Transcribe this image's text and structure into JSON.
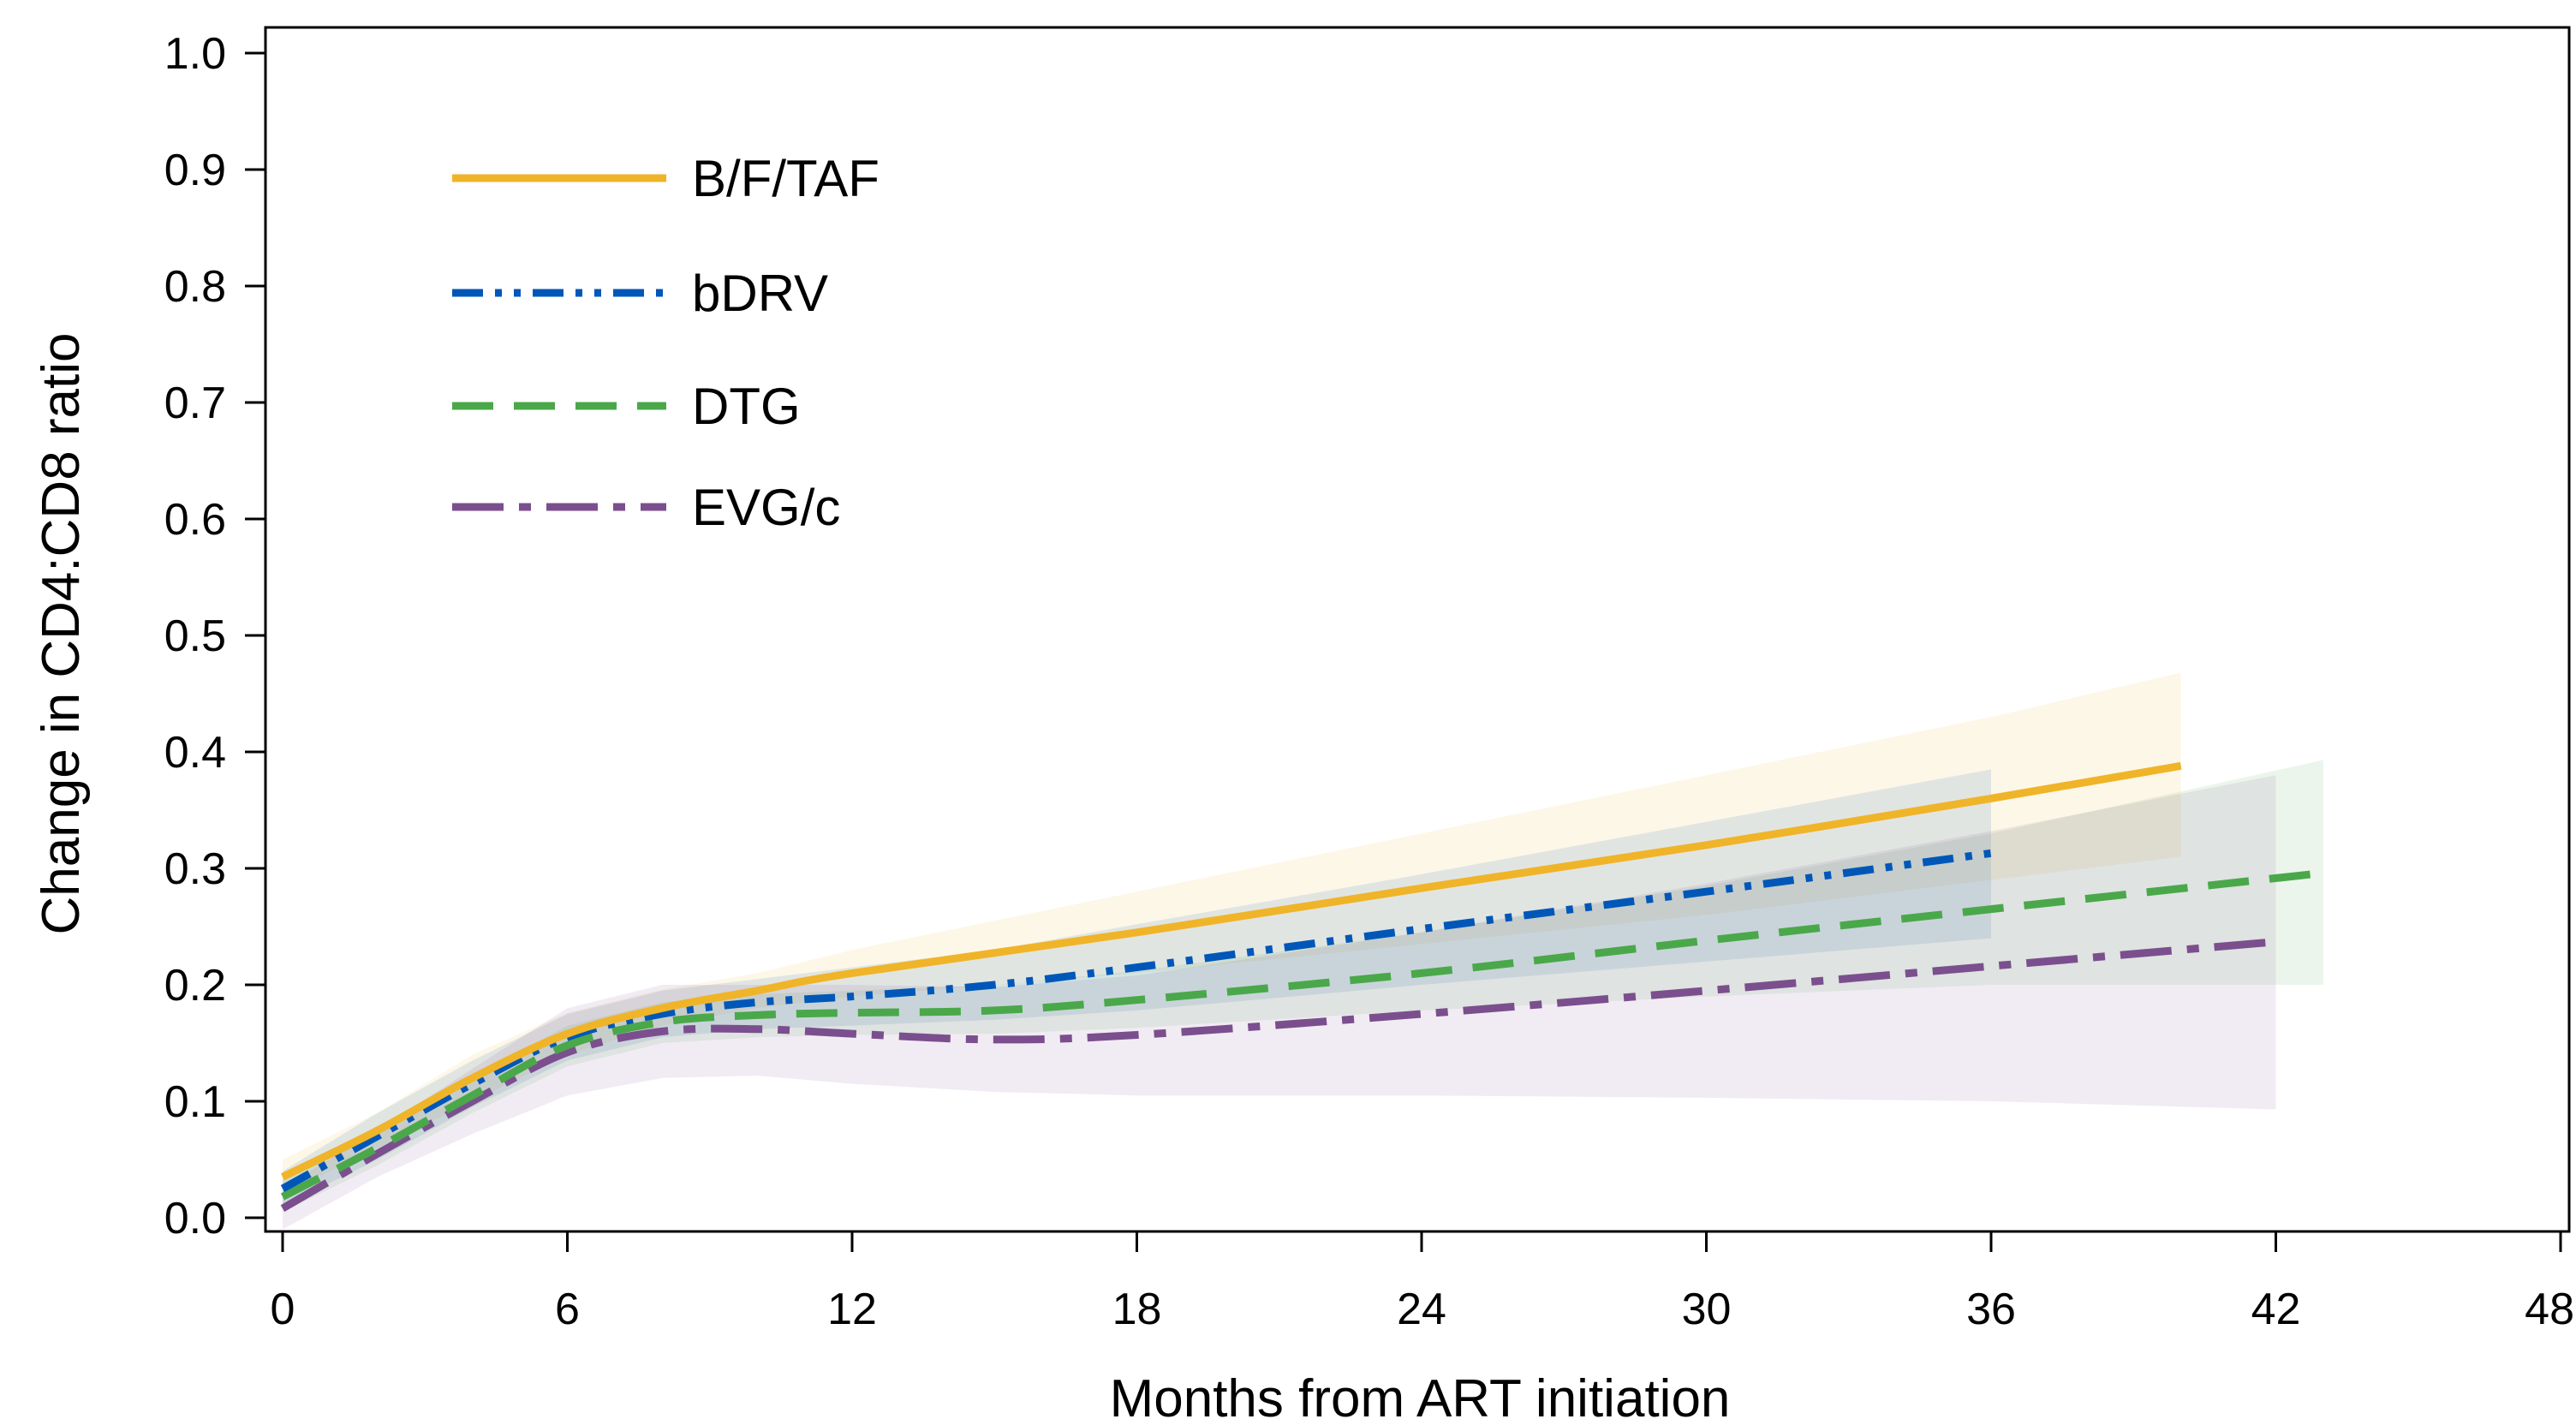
{
  "chart_data": {
    "type": "line",
    "xlabel": "Months from ART initiation",
    "ylabel": "Change in CD4:CD8 ratio",
    "xlim": [
      0,
      48
    ],
    "ylim": [
      0,
      1
    ],
    "x_ticks": [
      0,
      6,
      12,
      18,
      24,
      30,
      36,
      42,
      48
    ],
    "x_tick_labels": [
      "0",
      "6",
      "12",
      "18",
      "24",
      "30",
      "36",
      "42",
      "48"
    ],
    "y_ticks": [
      0,
      0.1,
      0.2,
      0.3,
      0.4,
      0.5,
      0.6,
      0.7,
      0.8,
      0.9,
      1.0
    ],
    "y_tick_labels": [
      "0.0",
      "0.1",
      "0.2",
      "0.3",
      "0.4",
      "0.5",
      "0.6",
      "0.7",
      "0.8",
      "0.9",
      "1.0"
    ],
    "grid": false,
    "legend_position": "top-left",
    "confidence_bands": true,
    "series": [
      {
        "name": "B/F/TAF",
        "color": "#f0b429",
        "line_style": "solid",
        "x": [
          0,
          2,
          4,
          6,
          8,
          10,
          12,
          18,
          24,
          30,
          36,
          40
        ],
        "y": [
          0.035,
          0.075,
          0.12,
          0.158,
          0.18,
          0.195,
          0.21,
          0.245,
          0.283,
          0.32,
          0.36,
          0.388
        ],
        "ci_lower": [
          0.02,
          0.06,
          0.1,
          0.14,
          0.165,
          0.18,
          0.19,
          0.21,
          0.235,
          0.26,
          0.29,
          0.31
        ],
        "ci_upper": [
          0.05,
          0.09,
          0.14,
          0.176,
          0.196,
          0.21,
          0.23,
          0.28,
          0.33,
          0.38,
          0.43,
          0.468
        ]
      },
      {
        "name": "bDRV",
        "color": "#0057b8",
        "line_style": "dash-dot-dot",
        "x": [
          0,
          2,
          4,
          6,
          8,
          10,
          12,
          15,
          18,
          24,
          30,
          36
        ],
        "y": [
          0.025,
          0.07,
          0.115,
          0.155,
          0.175,
          0.185,
          0.19,
          0.2,
          0.215,
          0.248,
          0.28,
          0.313
        ],
        "ci_lower": [
          0.01,
          0.05,
          0.095,
          0.135,
          0.155,
          0.162,
          0.165,
          0.17,
          0.178,
          0.2,
          0.22,
          0.24
        ],
        "ci_upper": [
          0.04,
          0.09,
          0.135,
          0.175,
          0.195,
          0.205,
          0.215,
          0.23,
          0.252,
          0.295,
          0.34,
          0.385
        ]
      },
      {
        "name": "DTG",
        "color": "#4aa84a",
        "line_style": "dashed",
        "x": [
          0,
          2,
          4,
          6,
          8,
          10,
          12,
          15,
          18,
          24,
          30,
          36,
          43
        ],
        "y": [
          0.018,
          0.06,
          0.105,
          0.148,
          0.168,
          0.174,
          0.176,
          0.178,
          0.187,
          0.21,
          0.238,
          0.265,
          0.296
        ],
        "ci_lower": [
          0.005,
          0.045,
          0.09,
          0.13,
          0.15,
          0.155,
          0.157,
          0.158,
          0.163,
          0.178,
          0.19,
          0.2,
          0.2
        ],
        "ci_upper": [
          0.032,
          0.075,
          0.12,
          0.165,
          0.185,
          0.192,
          0.195,
          0.2,
          0.212,
          0.245,
          0.285,
          0.33,
          0.393
        ]
      },
      {
        "name": "EVG/c",
        "color": "#7b4f8e",
        "line_style": "long-dash-dot",
        "x": [
          0,
          2,
          4,
          6,
          8,
          10,
          12,
          15,
          18,
          24,
          30,
          36,
          42
        ],
        "y": [
          0.008,
          0.055,
          0.1,
          0.142,
          0.16,
          0.162,
          0.158,
          0.153,
          0.157,
          0.175,
          0.195,
          0.216,
          0.237
        ],
        "ci_lower": [
          -0.01,
          0.035,
          0.072,
          0.105,
          0.12,
          0.122,
          0.115,
          0.108,
          0.105,
          0.105,
          0.103,
          0.1,
          0.093
        ],
        "ci_upper": [
          0.026,
          0.075,
          0.128,
          0.18,
          0.2,
          0.2,
          0.2,
          0.198,
          0.208,
          0.245,
          0.287,
          0.332,
          0.38
        ]
      }
    ]
  }
}
